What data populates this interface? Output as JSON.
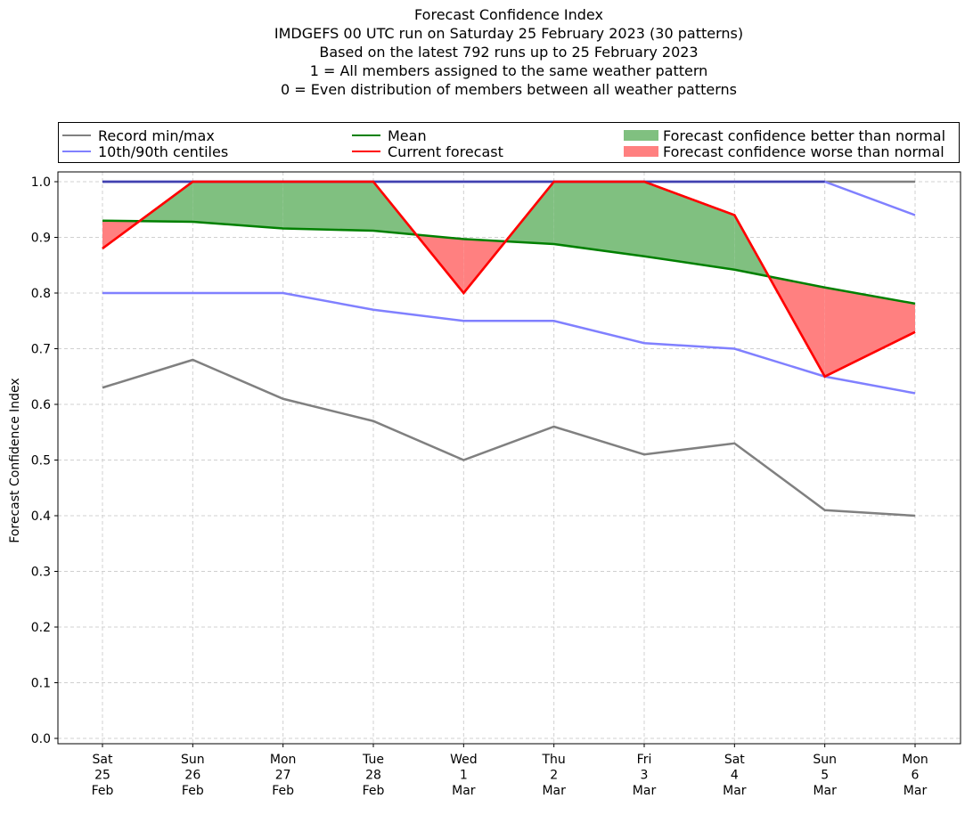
{
  "chart_data": {
    "type": "line",
    "title": "Forecast Confidence Index",
    "subtitle_lines": [
      "IMDGEFS 00 UTC run on Saturday 25 February 2023 (30 patterns)",
      "Based on the latest 792 runs up to 25 February 2023",
      "1 = All members assigned to the same weather pattern",
      "0 = Even distribution of members between all weather patterns"
    ],
    "xlabel": "",
    "ylabel": "Forecast Confidence Index",
    "ylim": [
      -0.01,
      1.01
    ],
    "yticks": [
      "0.0",
      "0.1",
      "0.2",
      "0.3",
      "0.4",
      "0.5",
      "0.6",
      "0.7",
      "0.8",
      "0.9",
      "1.0"
    ],
    "ytick_values": [
      0.0,
      0.1,
      0.2,
      0.3,
      0.4,
      0.5,
      0.6,
      0.7,
      0.8,
      0.9,
      1.0
    ],
    "grid": true,
    "legend_placement": "top (above plot, 3 columns)",
    "categories": [
      {
        "day": "Sat",
        "date": "25",
        "month": "Feb"
      },
      {
        "day": "Sun",
        "date": "26",
        "month": "Feb"
      },
      {
        "day": "Mon",
        "date": "27",
        "month": "Feb"
      },
      {
        "day": "Tue",
        "date": "28",
        "month": "Feb"
      },
      {
        "day": "Wed",
        "date": "1",
        "month": "Mar"
      },
      {
        "day": "Thu",
        "date": "2",
        "month": "Mar"
      },
      {
        "day": "Fri",
        "date": "3",
        "month": "Mar"
      },
      {
        "day": "Sat",
        "date": "4",
        "month": "Mar"
      },
      {
        "day": "Sun",
        "date": "5",
        "month": "Mar"
      },
      {
        "day": "Mon",
        "date": "6",
        "month": "Mar"
      }
    ],
    "series": [
      {
        "name": "Record min",
        "legend": "Record min/max",
        "color": "#808080",
        "values": [
          0.63,
          0.68,
          0.61,
          0.57,
          0.5,
          0.56,
          0.51,
          0.53,
          0.41,
          0.4
        ]
      },
      {
        "name": "Record max",
        "legend": "Record min/max",
        "color": "#808080",
        "values": [
          1.0,
          1.0,
          1.0,
          1.0,
          1.0,
          1.0,
          1.0,
          1.0,
          1.0,
          1.0
        ]
      },
      {
        "name": "10th centile",
        "legend": "10th/90th centiles",
        "color": "#8080ff",
        "values": [
          0.8,
          0.8,
          0.8,
          0.77,
          0.75,
          0.75,
          0.71,
          0.7,
          0.65,
          0.62
        ]
      },
      {
        "name": "90th centile",
        "legend": "10th/90th centiles",
        "color": "#8080ff",
        "values": [
          1.0,
          1.0,
          1.0,
          1.0,
          1.0,
          1.0,
          1.0,
          1.0,
          1.0,
          0.94
        ]
      },
      {
        "name": "Mean",
        "legend": "Mean",
        "color": "#008000",
        "values": [
          0.93,
          0.928,
          0.916,
          0.912,
          0.897,
          0.888,
          0.866,
          0.842,
          0.81,
          0.781
        ]
      },
      {
        "name": "Current forecast",
        "legend": "Current forecast",
        "color": "#ff0000",
        "values": [
          0.88,
          1.0,
          1.0,
          1.0,
          0.8,
          1.0,
          1.0,
          0.94,
          0.65,
          0.73
        ]
      }
    ],
    "fills": [
      {
        "name": "Forecast confidence better than normal",
        "color": "#80c080",
        "rule": "current above mean"
      },
      {
        "name": "Forecast confidence worse than normal",
        "color": "#ff8080",
        "rule": "current below mean"
      }
    ]
  },
  "legend": {
    "items": [
      {
        "label": "Record min/max",
        "kind": "line",
        "color": "#808080"
      },
      {
        "label": "10th/90th centiles",
        "kind": "line",
        "color": "#8080ff"
      },
      {
        "label": "Mean",
        "kind": "line",
        "color": "#008000"
      },
      {
        "label": "Current forecast",
        "kind": "line",
        "color": "#ff0000"
      },
      {
        "label": "Forecast confidence better than normal",
        "kind": "patch",
        "color": "#80c080"
      },
      {
        "label": "Forecast confidence worse than normal",
        "kind": "patch",
        "color": "#ff8080"
      }
    ]
  }
}
